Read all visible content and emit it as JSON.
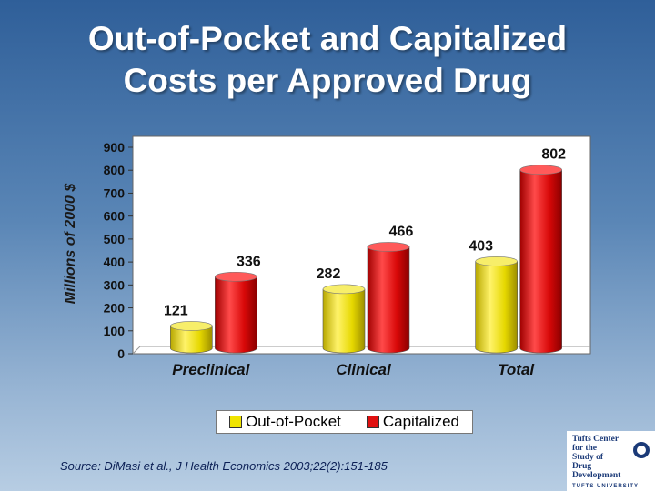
{
  "title_line1": "Out-of-Pocket and Capitalized",
  "title_line2": "Costs per Approved Drug",
  "source": "Source: DiMasi et al., J Health Economics 2003;22(2):151-185",
  "logo": {
    "line1": "Tufts Center",
    "line2": "for the",
    "line3": "Study of",
    "line4": "Drug Development",
    "line5": "TUFTS UNIVERSITY"
  },
  "colors": {
    "out_of_pocket": "#f0e400",
    "capitalized": "#e01010"
  },
  "chart_data": {
    "type": "bar",
    "categories": [
      "Preclinical",
      "Clinical",
      "Total"
    ],
    "series": [
      {
        "name": "Out-of-Pocket",
        "values": [
          121,
          282,
          403
        ]
      },
      {
        "name": "Capitalized",
        "values": [
          336,
          466,
          802
        ]
      }
    ],
    "value_labels": [
      [
        "121",
        "282",
        "403"
      ],
      [
        "336",
        "466",
        "802"
      ]
    ],
    "title": "Out-of-Pocket and Capitalized Costs per Approved Drug",
    "xlabel": "",
    "ylabel": "Millions of 2000 $",
    "ylim": [
      0,
      900
    ],
    "yticks": [
      "0",
      "100",
      "200",
      "300",
      "400",
      "500",
      "600",
      "700",
      "800",
      "900"
    ],
    "legend": "bottom",
    "grid": false,
    "style": "3d-cylinder"
  }
}
